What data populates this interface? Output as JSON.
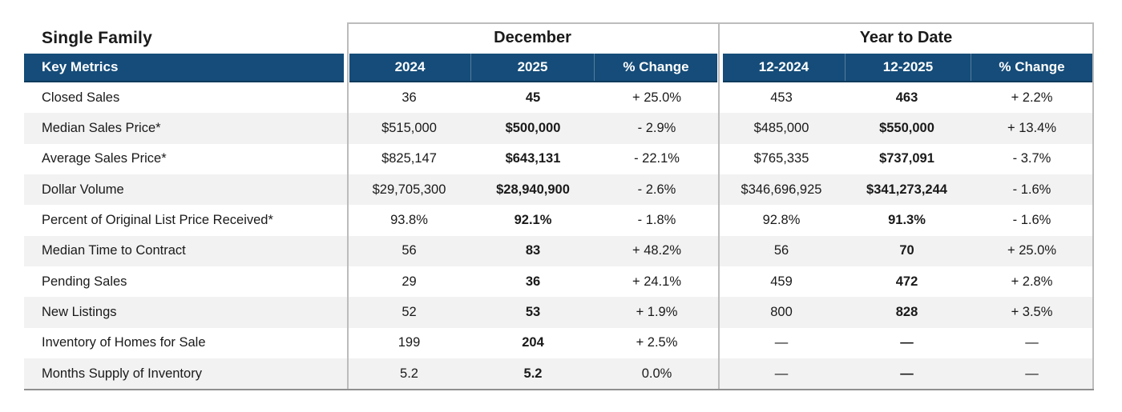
{
  "report": {
    "title": "Single Family",
    "key_metrics_label": "Key Metrics",
    "groups": {
      "december": {
        "title": "December",
        "col_2024": "2024",
        "col_2025": "2025",
        "col_change": "% Change"
      },
      "year_to_date": {
        "title": "Year to Date",
        "col_2024": "12-2024",
        "col_2025": "12-2025",
        "col_change": "% Change"
      }
    },
    "rows": [
      {
        "metric": "Closed Sales",
        "dec_2024": "36",
        "dec_2025": "45",
        "dec_change": "+ 25.0%",
        "ytd_2024": "453",
        "ytd_2025": "463",
        "ytd_change": "+ 2.2%"
      },
      {
        "metric": "Median Sales Price*",
        "dec_2024": "$515,000",
        "dec_2025": "$500,000",
        "dec_change": "- 2.9%",
        "ytd_2024": "$485,000",
        "ytd_2025": "$550,000",
        "ytd_change": "+ 13.4%"
      },
      {
        "metric": "Average Sales Price*",
        "dec_2024": "$825,147",
        "dec_2025": "$643,131",
        "dec_change": "- 22.1%",
        "ytd_2024": "$765,335",
        "ytd_2025": "$737,091",
        "ytd_change": "- 3.7%"
      },
      {
        "metric": "Dollar Volume",
        "dec_2024": "$29,705,300",
        "dec_2025": "$28,940,900",
        "dec_change": "- 2.6%",
        "ytd_2024": "$346,696,925",
        "ytd_2025": "$341,273,244",
        "ytd_change": "- 1.6%"
      },
      {
        "metric": "Percent of Original List Price Received*",
        "dec_2024": "93.8%",
        "dec_2025": "92.1%",
        "dec_change": "- 1.8%",
        "ytd_2024": "92.8%",
        "ytd_2025": "91.3%",
        "ytd_change": "- 1.6%"
      },
      {
        "metric": "Median Time to Contract",
        "dec_2024": "56",
        "dec_2025": "83",
        "dec_change": "+ 48.2%",
        "ytd_2024": "56",
        "ytd_2025": "70",
        "ytd_change": "+ 25.0%"
      },
      {
        "metric": "Pending Sales",
        "dec_2024": "29",
        "dec_2025": "36",
        "dec_change": "+ 24.1%",
        "ytd_2024": "459",
        "ytd_2025": "472",
        "ytd_change": "+ 2.8%"
      },
      {
        "metric": "New Listings",
        "dec_2024": "52",
        "dec_2025": "53",
        "dec_change": "+ 1.9%",
        "ytd_2024": "800",
        "ytd_2025": "828",
        "ytd_change": "+ 3.5%"
      },
      {
        "metric": "Inventory of Homes for Sale",
        "dec_2024": "199",
        "dec_2025": "204",
        "dec_change": "+ 2.5%",
        "ytd_2024": "—",
        "ytd_2025": "—",
        "ytd_change": "—"
      },
      {
        "metric": "Months Supply of Inventory",
        "dec_2024": "5.2",
        "dec_2025": "5.2",
        "dec_change": "0.0%",
        "ytd_2024": "—",
        "ytd_2025": "—",
        "ytd_change": "—"
      }
    ],
    "colors": {
      "header_blue": "#154c79",
      "header_blue_border": "#0e3a5c",
      "stripe_gray": "#f2f2f2",
      "grid_line": "#bcbcbc",
      "bottom_line": "#8f8f8f"
    }
  }
}
